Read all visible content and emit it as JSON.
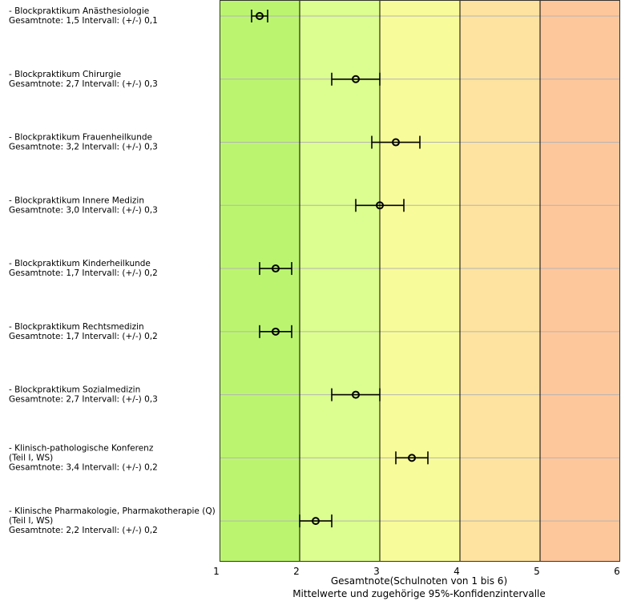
{
  "chart_data": {
    "type": "errorbar",
    "xlim": [
      1,
      6
    ],
    "xticks": [
      "1",
      "2",
      "3",
      "4",
      "5",
      "6"
    ],
    "xlabel_line1": "Gesamtnote(Schulnoten von 1 bis 6)",
    "xlabel_line2": "Mittelwerte und zugehörige 95%-Konfidenzintervalle",
    "grid": true,
    "bands": [
      {
        "from": 1,
        "to": 2,
        "color": "#bbf56f"
      },
      {
        "from": 2,
        "to": 3,
        "color": "#dcfd8f"
      },
      {
        "from": 3,
        "to": 4,
        "color": "#f8fb99"
      },
      {
        "from": 4,
        "to": 5,
        "color": "#fde39f"
      },
      {
        "from": 5,
        "to": 6,
        "color": "#fec79b"
      }
    ],
    "items": [
      {
        "label_lines": [
          "- Blockpraktikum Anästhesiologie"
        ],
        "summary": "Gesamtnote: 1,5 Intervall: (+/-) 0,1",
        "mean": 1.5,
        "ci": 0.1
      },
      {
        "label_lines": [
          "- Blockpraktikum Chirurgie"
        ],
        "summary": "Gesamtnote: 2,7 Intervall: (+/-) 0,3",
        "mean": 2.7,
        "ci": 0.3
      },
      {
        "label_lines": [
          "- Blockpraktikum Frauenheilkunde"
        ],
        "summary": "Gesamtnote: 3,2 Intervall: (+/-) 0,3",
        "mean": 3.2,
        "ci": 0.3
      },
      {
        "label_lines": [
          "- Blockpraktikum Innere Medizin"
        ],
        "summary": "Gesamtnote: 3,0 Intervall: (+/-) 0,3",
        "mean": 3.0,
        "ci": 0.3
      },
      {
        "label_lines": [
          "- Blockpraktikum Kinderheilkunde"
        ],
        "summary": "Gesamtnote: 1,7 Intervall: (+/-) 0,2",
        "mean": 1.7,
        "ci": 0.2
      },
      {
        "label_lines": [
          "- Blockpraktikum Rechtsmedizin"
        ],
        "summary": "Gesamtnote: 1,7 Intervall: (+/-) 0,2",
        "mean": 1.7,
        "ci": 0.2
      },
      {
        "label_lines": [
          "- Blockpraktikum Sozialmedizin"
        ],
        "summary": "Gesamtnote: 2,7 Intervall: (+/-) 0,3",
        "mean": 2.7,
        "ci": 0.3
      },
      {
        "label_lines": [
          "- Klinisch-pathologische Konferenz",
          "(Teil I, WS)"
        ],
        "summary": "Gesamtnote: 3,4 Intervall: (+/-) 0,2",
        "mean": 3.4,
        "ci": 0.2
      },
      {
        "label_lines": [
          "- Klinische Pharmakologie, Pharmakotherapie (Q)",
          "(Teil I, WS)"
        ],
        "summary": "Gesamtnote: 2,2 Intervall: (+/-) 0,2",
        "mean": 2.2,
        "ci": 0.2
      }
    ]
  }
}
